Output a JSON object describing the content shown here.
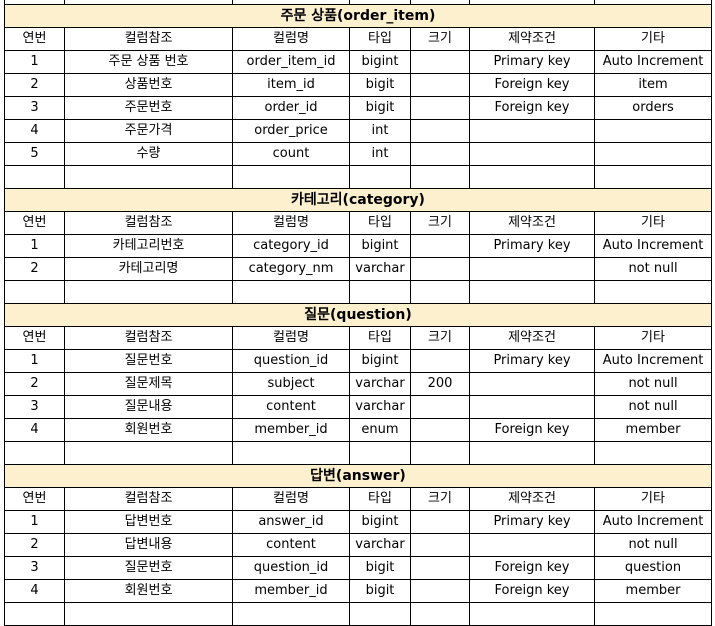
{
  "column_headers": [
    "연번",
    "컬럼참조",
    "컬럼명",
    "타입",
    "크기",
    "제약조건",
    "기타"
  ],
  "sections": [
    {
      "title": "주문 상품(order_item)",
      "rows": [
        [
          "1",
          "주문 상품 번호",
          "order_item_id",
          "bigint",
          "",
          "Primary key",
          "Auto Increment"
        ],
        [
          "2",
          "상품번호",
          "item_id",
          "bigit",
          "",
          "Foreign key",
          "item"
        ],
        [
          "3",
          "주문번호",
          "order_id",
          "bigit",
          "",
          "Foreign key",
          "orders"
        ],
        [
          "4",
          "주문가격",
          "order_price",
          "int",
          "",
          "",
          ""
        ],
        [
          "5",
          "수량",
          "count",
          "int",
          "",
          "",
          ""
        ]
      ]
    },
    {
      "title": "카테고리(category)",
      "rows": [
        [
          "1",
          "카테고리번호",
          "category_id",
          "bigint",
          "",
          "Primary key",
          "Auto Increment"
        ],
        [
          "2",
          "카테고리명",
          "category_nm",
          "varchar",
          "",
          "",
          "not null"
        ]
      ]
    },
    {
      "title": "질문(question)",
      "rows": [
        [
          "1",
          "질문번호",
          "question_id",
          "bigint",
          "",
          "Primary key",
          "Auto Increment"
        ],
        [
          "2",
          "질문제목",
          "subject",
          "varchar",
          "200",
          "",
          "not null"
        ],
        [
          "3",
          "질문내용",
          "content",
          "varchar",
          "",
          "",
          "not null"
        ],
        [
          "4",
          "회원번호",
          "member_id",
          "enum",
          "",
          "Foreign key",
          "member"
        ]
      ]
    },
    {
      "title": "답변(answer)",
      "rows": [
        [
          "1",
          "답변번호",
          "answer_id",
          "bigint",
          "",
          "Primary key",
          "Auto Increment"
        ],
        [
          "2",
          "답변내용",
          "content",
          "varchar",
          "",
          "",
          "not null"
        ],
        [
          "3",
          "질문번호",
          "question_id",
          "bigit",
          "",
          "Foreign key",
          "question"
        ],
        [
          "4",
          "회원번호",
          "member_id",
          "bigit",
          "",
          "Foreign key",
          "member"
        ]
      ]
    }
  ]
}
